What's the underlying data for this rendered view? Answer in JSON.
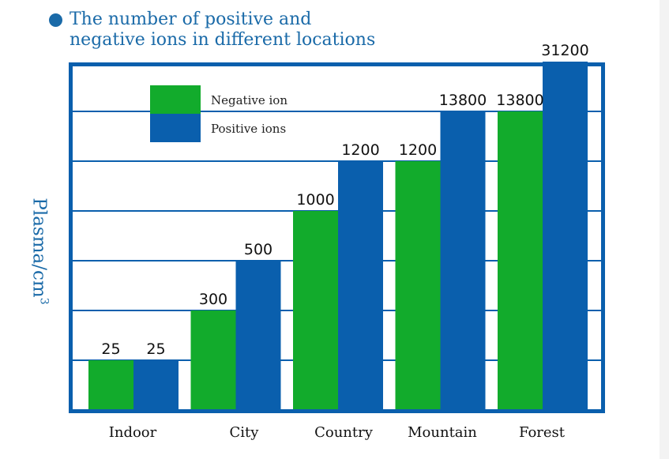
{
  "title_line1": "The number of positive and",
  "title_line2": "negative ions in different locations",
  "ylabel": "Plasma/cm",
  "ylabel_sup": "3",
  "chart_data": {
    "type": "bar",
    "categories": [
      "Indoor",
      "City",
      "Country",
      "Mountain",
      "Forest"
    ],
    "series": [
      {
        "name": "Negative ion",
        "values": [
          25,
          300,
          1000,
          1200,
          13800
        ],
        "color": "#12ab2c"
      },
      {
        "name": "Positive ions",
        "values": [
          25,
          500,
          1200,
          13800,
          31200
        ],
        "color": "#0a5fad"
      }
    ],
    "title": "The number of positive and negative ions in different locations",
    "xlabel": "",
    "ylabel": "Plasma/cm3",
    "scale": "ordinal-step",
    "levels": [
      25,
      300,
      500,
      1000,
      1200,
      13800,
      31200
    ],
    "grid": true,
    "legend": "top-left",
    "frame_color": "#0a5fad"
  }
}
